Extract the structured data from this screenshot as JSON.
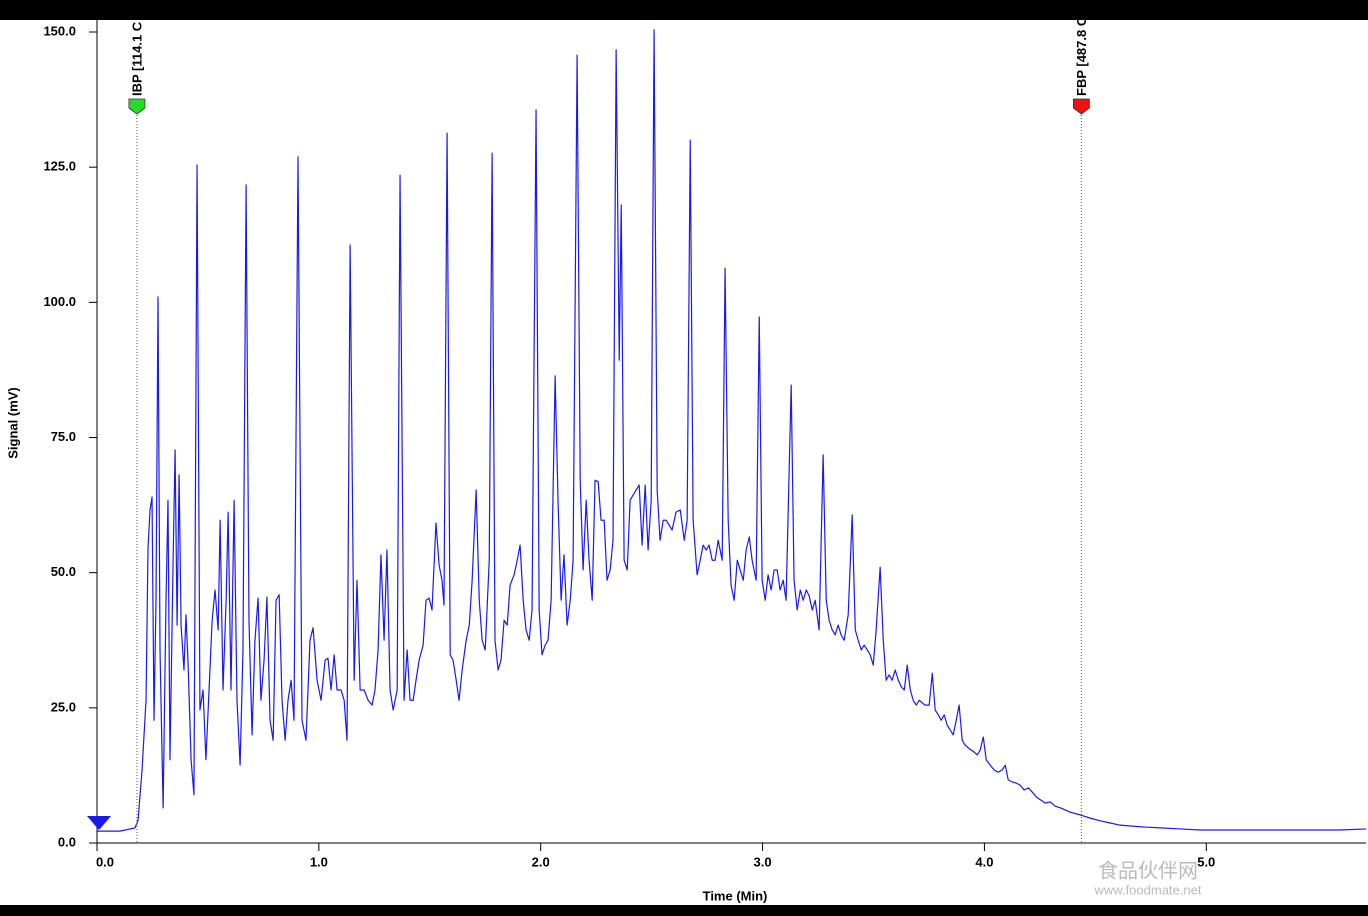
{
  "chart_data": {
    "type": "line",
    "ylabel": "Signal (mV)",
    "xlabel": "Time (Min)",
    "xlim": [
      0,
      5.72
    ],
    "ylim": [
      0,
      150
    ],
    "xticks": [
      {
        "value": 0,
        "label": "0.0"
      },
      {
        "value": 1,
        "label": "1.0"
      },
      {
        "value": 2,
        "label": "2.0"
      },
      {
        "value": 3,
        "label": "3.0"
      },
      {
        "value": 4,
        "label": "4.0"
      },
      {
        "value": 5,
        "label": "5.0"
      }
    ],
    "yticks": [
      {
        "value": 0,
        "label": "0.0"
      },
      {
        "value": 25,
        "label": "25.0"
      },
      {
        "value": 50,
        "label": "50.0"
      },
      {
        "value": 75,
        "label": "75.0"
      },
      {
        "value": 100,
        "label": "100.0"
      },
      {
        "value": 125,
        "label": "125.0"
      },
      {
        "value": 150,
        "label": "150.0"
      }
    ],
    "markers": [
      {
        "label": "IBP [114.1 C",
        "x": 0.18,
        "color": "#22dd22"
      },
      {
        "label": "FBP [487.8 C",
        "x": 4.437,
        "color": "#ee1111"
      }
    ],
    "watermark": [
      "食品伙伴网",
      "www.foodmate.net"
    ],
    "color": "#1a1aee",
    "x": [
      0,
      0.104,
      0.171,
      0.185,
      0.203,
      0.221,
      0.23,
      0.239,
      0.248,
      0.257,
      0.266,
      0.275,
      0.284,
      0.298,
      0.311,
      0.32,
      0.329,
      0.343,
      0.352,
      0.361,
      0.37,
      0.379,
      0.392,
      0.401,
      0.41,
      0.424,
      0.437,
      0.451,
      0.464,
      0.478,
      0.491,
      0.505,
      0.519,
      0.532,
      0.546,
      0.555,
      0.568,
      0.582,
      0.591,
      0.604,
      0.618,
      0.631,
      0.645,
      0.658,
      0.672,
      0.685,
      0.699,
      0.712,
      0.726,
      0.739,
      0.753,
      0.766,
      0.78,
      0.794,
      0.807,
      0.821,
      0.834,
      0.848,
      0.861,
      0.875,
      0.888,
      0.906,
      0.924,
      0.942,
      0.96,
      0.974,
      0.992,
      1.01,
      1.028,
      1.041,
      1.055,
      1.069,
      1.082,
      1.1,
      1.114,
      1.127,
      1.141,
      1.159,
      1.172,
      1.186,
      1.204,
      1.222,
      1.24,
      1.253,
      1.267,
      1.28,
      1.294,
      1.307,
      1.321,
      1.335,
      1.353,
      1.366,
      1.384,
      1.398,
      1.411,
      1.425,
      1.438,
      1.452,
      1.47,
      1.483,
      1.497,
      1.51,
      1.528,
      1.542,
      1.555,
      1.564,
      1.578,
      1.592,
      1.605,
      1.619,
      1.632,
      1.646,
      1.664,
      1.678,
      1.691,
      1.709,
      1.723,
      1.736,
      1.75,
      1.768,
      1.781,
      1.794,
      1.808,
      1.821,
      1.835,
      1.849,
      1.862,
      1.88,
      1.894,
      1.907,
      1.921,
      1.934,
      1.948,
      1.961,
      1.979,
      1.993,
      2.006,
      2.02,
      2.033,
      2.047,
      2.065,
      2.078,
      2.092,
      2.105,
      2.119,
      2.133,
      2.146,
      2.164,
      2.178,
      2.191,
      2.205,
      2.218,
      2.232,
      2.245,
      2.259,
      2.272,
      2.286,
      2.299,
      2.313,
      2.326,
      2.34,
      2.354,
      2.363,
      2.376,
      2.39,
      2.403,
      2.417,
      2.43,
      2.444,
      2.457,
      2.471,
      2.484,
      2.498,
      2.511,
      2.525,
      2.538,
      2.552,
      2.565,
      2.579,
      2.592,
      2.61,
      2.629,
      2.647,
      2.66,
      2.674,
      2.687,
      2.705,
      2.719,
      2.732,
      2.746,
      2.759,
      2.773,
      2.786,
      2.8,
      2.818,
      2.831,
      2.845,
      2.858,
      2.872,
      2.886,
      2.899,
      2.913,
      2.926,
      2.94,
      2.953,
      2.971,
      2.985,
      2.998,
      3.012,
      3.025,
      3.039,
      3.052,
      3.066,
      3.079,
      3.093,
      3.106,
      3.129,
      3.142,
      3.156,
      3.17,
      3.183,
      3.197,
      3.21,
      3.224,
      3.237,
      3.255,
      3.273,
      3.287,
      3.3,
      3.314,
      3.327,
      3.341,
      3.354,
      3.368,
      3.386,
      3.404,
      3.418,
      3.431,
      3.445,
      3.458,
      3.472,
      3.485,
      3.499,
      3.512,
      3.53,
      3.544,
      3.557,
      3.571,
      3.584,
      3.598,
      3.612,
      3.625,
      3.639,
      3.652,
      3.666,
      3.679,
      3.693,
      3.706,
      3.72,
      3.733,
      3.751,
      3.765,
      3.778,
      3.792,
      3.805,
      3.819,
      3.832,
      3.846,
      3.859,
      3.873,
      3.886,
      3.9,
      3.913,
      3.927,
      3.94,
      3.954,
      3.968,
      3.981,
      3.995,
      4.008,
      4.026,
      4.044,
      4.062,
      4.08,
      4.094,
      4.107,
      4.125,
      4.143,
      4.161,
      4.179,
      4.198,
      4.216,
      4.234,
      4.252,
      4.274,
      4.297,
      4.319,
      4.342,
      4.387,
      4.432,
      4.477,
      4.522,
      4.567,
      4.612,
      4.702,
      4.792,
      4.883,
      4.973,
      5.108,
      5.243,
      5.424,
      5.604,
      5.721
    ],
    "values": [
      2.2,
      2.2,
      2.8,
      4.2,
      13.5,
      26.4,
      54.6,
      61.6,
      64.0,
      22.7,
      44.9,
      101.0,
      35.7,
      6.5,
      44.9,
      63.4,
      15.4,
      52.3,
      72.7,
      40.3,
      68.1,
      40.3,
      32.0,
      42.2,
      33.8,
      15.4,
      8.9,
      125.4,
      24.6,
      28.3,
      15.4,
      28.3,
      41.2,
      46.8,
      39.4,
      59.7,
      28.3,
      44.9,
      61.2,
      28.3,
      63.4,
      26.4,
      14.4,
      35.7,
      121.7,
      41.2,
      20.0,
      37.5,
      45.3,
      26.4,
      33.8,
      45.5,
      22.7,
      19.0,
      44.9,
      45.9,
      26.4,
      19.0,
      26.4,
      30.1,
      22.7,
      126.9,
      22.7,
      19.0,
      37.5,
      39.8,
      30.1,
      26.4,
      33.8,
      34.2,
      28.3,
      34.8,
      28.3,
      28.3,
      26.4,
      19.0,
      110.6,
      30.1,
      48.6,
      28.3,
      28.3,
      26.4,
      25.5,
      28.3,
      35.7,
      53.3,
      37.5,
      54.2,
      28.3,
      24.6,
      28.3,
      123.5,
      26.4,
      35.7,
      26.4,
      26.4,
      30.1,
      33.8,
      36.6,
      44.9,
      45.3,
      43.1,
      59.2,
      51.4,
      48.6,
      44.0,
      131.3,
      34.8,
      33.8,
      30.1,
      26.4,
      32.0,
      37.5,
      40.3,
      48.6,
      65.3,
      44.9,
      37.5,
      35.7,
      52.3,
      127.6,
      37.5,
      32.0,
      33.8,
      41.2,
      40.3,
      47.7,
      49.6,
      52.3,
      55.1,
      44.9,
      39.4,
      37.5,
      43.1,
      135.6,
      43.1,
      34.8,
      36.6,
      37.5,
      44.9,
      86.4,
      63.4,
      44.9,
      53.3,
      40.3,
      44.9,
      52.3,
      145.7,
      67.1,
      50.5,
      63.4,
      52.3,
      44.9,
      67.1,
      66.8,
      59.7,
      59.7,
      48.6,
      50.5,
      56.0,
      146.7,
      89.3,
      118.0,
      52.3,
      50.5,
      63.4,
      64.4,
      65.3,
      66.2,
      55.1,
      66.2,
      54.2,
      63.4,
      150.4,
      65.3,
      56.0,
      59.7,
      59.7,
      58.8,
      57.9,
      61.2,
      61.6,
      56.0,
      59.7,
      130.0,
      59.7,
      49.6,
      52.3,
      55.1,
      54.2,
      55.1,
      52.3,
      52.3,
      56.0,
      52.3,
      106.3,
      59.7,
      47.7,
      44.9,
      52.3,
      50.5,
      48.6,
      54.2,
      56.6,
      52.3,
      48.6,
      97.3,
      48.6,
      44.9,
      49.6,
      46.8,
      50.5,
      50.5,
      46.8,
      48.6,
      44.9,
      84.7,
      48.6,
      43.1,
      46.8,
      44.9,
      46.8,
      45.7,
      43.1,
      44.9,
      39.4,
      71.8,
      44.9,
      41.2,
      39.4,
      38.5,
      40.3,
      38.5,
      37.5,
      42.2,
      60.7,
      39.4,
      37.5,
      35.7,
      36.6,
      35.7,
      34.8,
      32.9,
      39.4,
      51.0,
      37.5,
      30.1,
      31.1,
      30.1,
      32.0,
      30.1,
      28.9,
      28.3,
      32.9,
      28.3,
      26.4,
      25.5,
      26.4,
      25.9,
      25.5,
      25.5,
      31.4,
      24.6,
      23.7,
      22.7,
      23.7,
      21.8,
      20.9,
      20.0,
      22.7,
      25.5,
      19.0,
      18.1,
      17.6,
      17.2,
      16.8,
      16.3,
      17.2,
      19.6,
      15.4,
      14.4,
      13.5,
      13.1,
      13.5,
      14.4,
      11.7,
      11.3,
      11.1,
      10.7,
      9.8,
      10.2,
      9.4,
      8.5,
      8.0,
      7.4,
      7.6,
      6.8,
      6.5,
      5.7,
      5.2,
      4.6,
      4.1,
      3.7,
      3.3,
      3.0,
      2.8,
      2.6,
      2.4,
      2.4,
      2.4,
      2.4,
      2.4,
      2.6
    ]
  }
}
